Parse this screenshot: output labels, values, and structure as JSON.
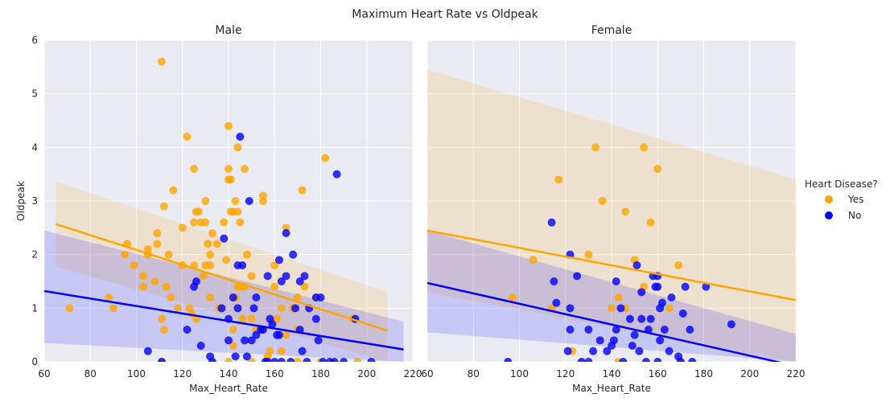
{
  "figure": {
    "suptitle": "Maximum Heart Rate vs Oldpeak",
    "legend": {
      "title": "Heart Disease?",
      "placement": "center-right",
      "entries": [
        {
          "label": "Yes",
          "color": "#FFA500"
        },
        {
          "label": "No",
          "color": "#0000FF"
        }
      ]
    }
  },
  "colors": {
    "yes": "#FFA500",
    "no": "#0000FF",
    "axes_background": "#EAEAF2",
    "grid": "#FFFFFF"
  },
  "chart_data": [
    {
      "type": "scatter",
      "title": "Male",
      "xlabel": "Max_Heart_Rate",
      "ylabel": "Oldpeak",
      "xlim": [
        60,
        220
      ],
      "ylim": [
        0,
        6
      ],
      "xticks": [
        60,
        80,
        100,
        120,
        140,
        160,
        180,
        200,
        220
      ],
      "yticks": [
        0,
        1,
        2,
        3,
        4,
        5,
        6
      ],
      "grid": true,
      "series": [
        {
          "name": "Yes",
          "color": "#FFA500",
          "points": [
            [
              71,
              1.0
            ],
            [
              88,
              1.2
            ],
            [
              90,
              1.0
            ],
            [
              95,
              2.0
            ],
            [
              96,
              2.2
            ],
            [
              99,
              1.8
            ],
            [
              103,
              1.4
            ],
            [
              103,
              1.6
            ],
            [
              105,
              2.0
            ],
            [
              105,
              2.1
            ],
            [
              108,
              1.5
            ],
            [
              109,
              2.2
            ],
            [
              109,
              2.4
            ],
            [
              111,
              0.8
            ],
            [
              111,
              5.6
            ],
            [
              112,
              2.9
            ],
            [
              112,
              0.6
            ],
            [
              113,
              1.4
            ],
            [
              114,
              2.0
            ],
            [
              115,
              1.2
            ],
            [
              116,
              3.2
            ],
            [
              118,
              1.0
            ],
            [
              120,
              1.8
            ],
            [
              120,
              2.5
            ],
            [
              122,
              4.2
            ],
            [
              123,
              1.0
            ],
            [
              124,
              0.9
            ],
            [
              125,
              2.6
            ],
            [
              125,
              3.6
            ],
            [
              125,
              1.8
            ],
            [
              126,
              2.8
            ],
            [
              126,
              0.8
            ],
            [
              127,
              2.8
            ],
            [
              128,
              2.6
            ],
            [
              129,
              1.6
            ],
            [
              130,
              2.6
            ],
            [
              130,
              3.0
            ],
            [
              130,
              1.8
            ],
            [
              131,
              2.2
            ],
            [
              132,
              2.0
            ],
            [
              132,
              1.2
            ],
            [
              132,
              1.8
            ],
            [
              133,
              2.4
            ],
            [
              135,
              2.2
            ],
            [
              136,
              1.0
            ],
            [
              138,
              2.6
            ],
            [
              139,
              1.9
            ],
            [
              140,
              4.4
            ],
            [
              140,
              3.6
            ],
            [
              140,
              3.4
            ],
            [
              141,
              3.4
            ],
            [
              141,
              2.8
            ],
            [
              142,
              2.8
            ],
            [
              142,
              0.6
            ],
            [
              142,
              0.3
            ],
            [
              143,
              3.0
            ],
            [
              143,
              1.2
            ],
            [
              144,
              2.8
            ],
            [
              144,
              4.0
            ],
            [
              144,
              1.4
            ],
            [
              145,
              2.6
            ],
            [
              145,
              1.4
            ],
            [
              146,
              0.8
            ],
            [
              147,
              3.6
            ],
            [
              147,
              1.4
            ],
            [
              148,
              2.0
            ],
            [
              150,
              1.6
            ],
            [
              150,
              0.8
            ],
            [
              152,
              0.6
            ],
            [
              155,
              3.1
            ],
            [
              155,
              3.0
            ],
            [
              155,
              0.6
            ],
            [
              157,
              0.1
            ],
            [
              158,
              0.2
            ],
            [
              160,
              1.8
            ],
            [
              160,
              1.4
            ],
            [
              161,
              0.8
            ],
            [
              163,
              0.2
            ],
            [
              163,
              1.0
            ],
            [
              165,
              2.5
            ],
            [
              165,
              0.5
            ],
            [
              168,
              1.0
            ],
            [
              170,
              1.2
            ],
            [
              170,
              0.6
            ],
            [
              172,
              3.2
            ],
            [
              173,
              1.4
            ],
            [
              178,
              1.2
            ],
            [
              182,
              3.8
            ],
            [
              194,
              0.8
            ],
            [
              196,
              0.0
            ],
            [
              111,
              0.0
            ],
            [
              140,
              0.0
            ],
            [
              150,
              0.0
            ],
            [
              170,
              0.0
            ],
            [
              180,
              0.0
            ]
          ]
        },
        {
          "name": "No",
          "color": "#0000FF",
          "points": [
            [
              105,
              0.2
            ],
            [
              111,
              0.0
            ],
            [
              122,
              0.6
            ],
            [
              125,
              1.4
            ],
            [
              126,
              1.5
            ],
            [
              128,
              0.3
            ],
            [
              132,
              0.1
            ],
            [
              133,
              0.0
            ],
            [
              137,
              1.0
            ],
            [
              138,
              2.3
            ],
            [
              140,
              0.4
            ],
            [
              140,
              0.8
            ],
            [
              142,
              1.2
            ],
            [
              143,
              0.1
            ],
            [
              144,
              1.0
            ],
            [
              144,
              1.8
            ],
            [
              145,
              4.2
            ],
            [
              146,
              1.8
            ],
            [
              147,
              0.4
            ],
            [
              148,
              0.1
            ],
            [
              149,
              3.0
            ],
            [
              150,
              0.4
            ],
            [
              151,
              1.0
            ],
            [
              152,
              1.2
            ],
            [
              152,
              0.5
            ],
            [
              154,
              0.6
            ],
            [
              155,
              0.6
            ],
            [
              156,
              0.0
            ],
            [
              157,
              1.6
            ],
            [
              158,
              0.8
            ],
            [
              159,
              0.7
            ],
            [
              160,
              0.0
            ],
            [
              161,
              0.5
            ],
            [
              162,
              1.9
            ],
            [
              162,
              0.5
            ],
            [
              163,
              1.5
            ],
            [
              165,
              1.6
            ],
            [
              165,
              2.4
            ],
            [
              167,
              0.0
            ],
            [
              168,
              2.0
            ],
            [
              169,
              1.0
            ],
            [
              171,
              1.5
            ],
            [
              171,
              0.6
            ],
            [
              172,
              0.2
            ],
            [
              173,
              1.6
            ],
            [
              175,
              1.0
            ],
            [
              178,
              1.2
            ],
            [
              178,
              0.8
            ],
            [
              179,
              0.4
            ],
            [
              180,
              1.2
            ],
            [
              181,
              0.0
            ],
            [
              186,
              0.0
            ],
            [
              187,
              3.5
            ],
            [
              190,
              0.0
            ],
            [
              195,
              0.8
            ],
            [
              202,
              0.0
            ],
            [
              157,
              0.0
            ],
            [
              163,
              0.0
            ],
            [
              174,
              0.0
            ],
            [
              184,
              0.0
            ]
          ]
        }
      ],
      "regression": [
        {
          "name": "Yes",
          "x": [
            65,
            209
          ],
          "y": [
            2.57,
            0.58
          ],
          "ci_lower": [
            1.78,
            0.0
          ],
          "ci_upper": [
            3.36,
            1.3
          ]
        },
        {
          "name": "No",
          "x": [
            60,
            216
          ],
          "y": [
            1.32,
            0.23
          ],
          "ci_lower": [
            0.35,
            0.0
          ],
          "ci_upper": [
            2.45,
            0.75
          ]
        }
      ]
    },
    {
      "type": "scatter",
      "title": "Female",
      "xlabel": "Max_Heart_Rate",
      "ylabel": "",
      "xlim": [
        60,
        220
      ],
      "ylim": [
        0,
        6
      ],
      "xticks": [
        60,
        80,
        100,
        120,
        140,
        160,
        180,
        200,
        220
      ],
      "yticks": [
        0,
        1,
        2,
        3,
        4,
        5,
        6
      ],
      "grid": true,
      "series": [
        {
          "name": "Yes",
          "color": "#FFA500",
          "points": [
            [
              97,
              1.2
            ],
            [
              106,
              1.9
            ],
            [
              114,
              1.0
            ],
            [
              117,
              3.4
            ],
            [
              123,
              0.2
            ],
            [
              130,
              2.0
            ],
            [
              133,
              4.0
            ],
            [
              136,
              3.0
            ],
            [
              140,
              1.0
            ],
            [
              143,
              1.2
            ],
            [
              146,
              1.0
            ],
            [
              146,
              2.8
            ],
            [
              150,
              1.9
            ],
            [
              154,
              4.0
            ],
            [
              154,
              1.4
            ],
            [
              157,
              2.6
            ],
            [
              160,
              3.6
            ],
            [
              165,
              1.0
            ],
            [
              169,
              1.8
            ],
            [
              143,
              0.0
            ],
            [
              170,
              0.0
            ]
          ]
        },
        {
          "name": "No",
          "color": "#0000FF",
          "points": [
            [
              95,
              0.0
            ],
            [
              114,
              2.6
            ],
            [
              115,
              1.5
            ],
            [
              116,
              1.1
            ],
            [
              121,
              0.2
            ],
            [
              122,
              1.0
            ],
            [
              122,
              2.0
            ],
            [
              122,
              0.6
            ],
            [
              125,
              1.6
            ],
            [
              127,
              0.0
            ],
            [
              130,
              0.6
            ],
            [
              132,
              0.2
            ],
            [
              135,
              0.4
            ],
            [
              138,
              0.2
            ],
            [
              140,
              0.3
            ],
            [
              141,
              0.4
            ],
            [
              142,
              0.6
            ],
            [
              142,
              1.5
            ],
            [
              144,
              1.0
            ],
            [
              148,
              0.8
            ],
            [
              149,
              0.3
            ],
            [
              150,
              0.5
            ],
            [
              151,
              1.8
            ],
            [
              152,
              0.2
            ],
            [
              153,
              0.8
            ],
            [
              153,
              1.3
            ],
            [
              156,
              0.6
            ],
            [
              157,
              0.8
            ],
            [
              158,
              1.6
            ],
            [
              159,
              1.4
            ],
            [
              160,
              1.6
            ],
            [
              160,
              1.4
            ],
            [
              161,
              1.0
            ],
            [
              161,
              0.4
            ],
            [
              162,
              1.1
            ],
            [
              163,
              0.6
            ],
            [
              165,
              0.2
            ],
            [
              166,
              1.2
            ],
            [
              169,
              0.1
            ],
            [
              171,
              0.9
            ],
            [
              172,
              1.4
            ],
            [
              174,
              0.6
            ],
            [
              175,
              0.0
            ],
            [
              181,
              1.4
            ],
            [
              192,
              0.7
            ],
            [
              130,
              0.0
            ],
            [
              145,
              0.0
            ],
            [
              155,
              0.0
            ],
            [
              160,
              0.0
            ],
            [
              170,
              0.0
            ]
          ]
        }
      ],
      "regression": [
        {
          "name": "Yes",
          "x": [
            60,
            220
          ],
          "y": [
            2.45,
            1.15
          ],
          "ci_lower": [
            1.3,
            0.0
          ],
          "ci_upper": [
            5.45,
            3.4
          ]
        },
        {
          "name": "No",
          "x": [
            60,
            220
          ],
          "y": [
            1.47,
            -0.08
          ],
          "ci_lower": [
            0.55,
            0.0
          ],
          "ci_upper": [
            2.45,
            0.52
          ]
        }
      ]
    }
  ]
}
